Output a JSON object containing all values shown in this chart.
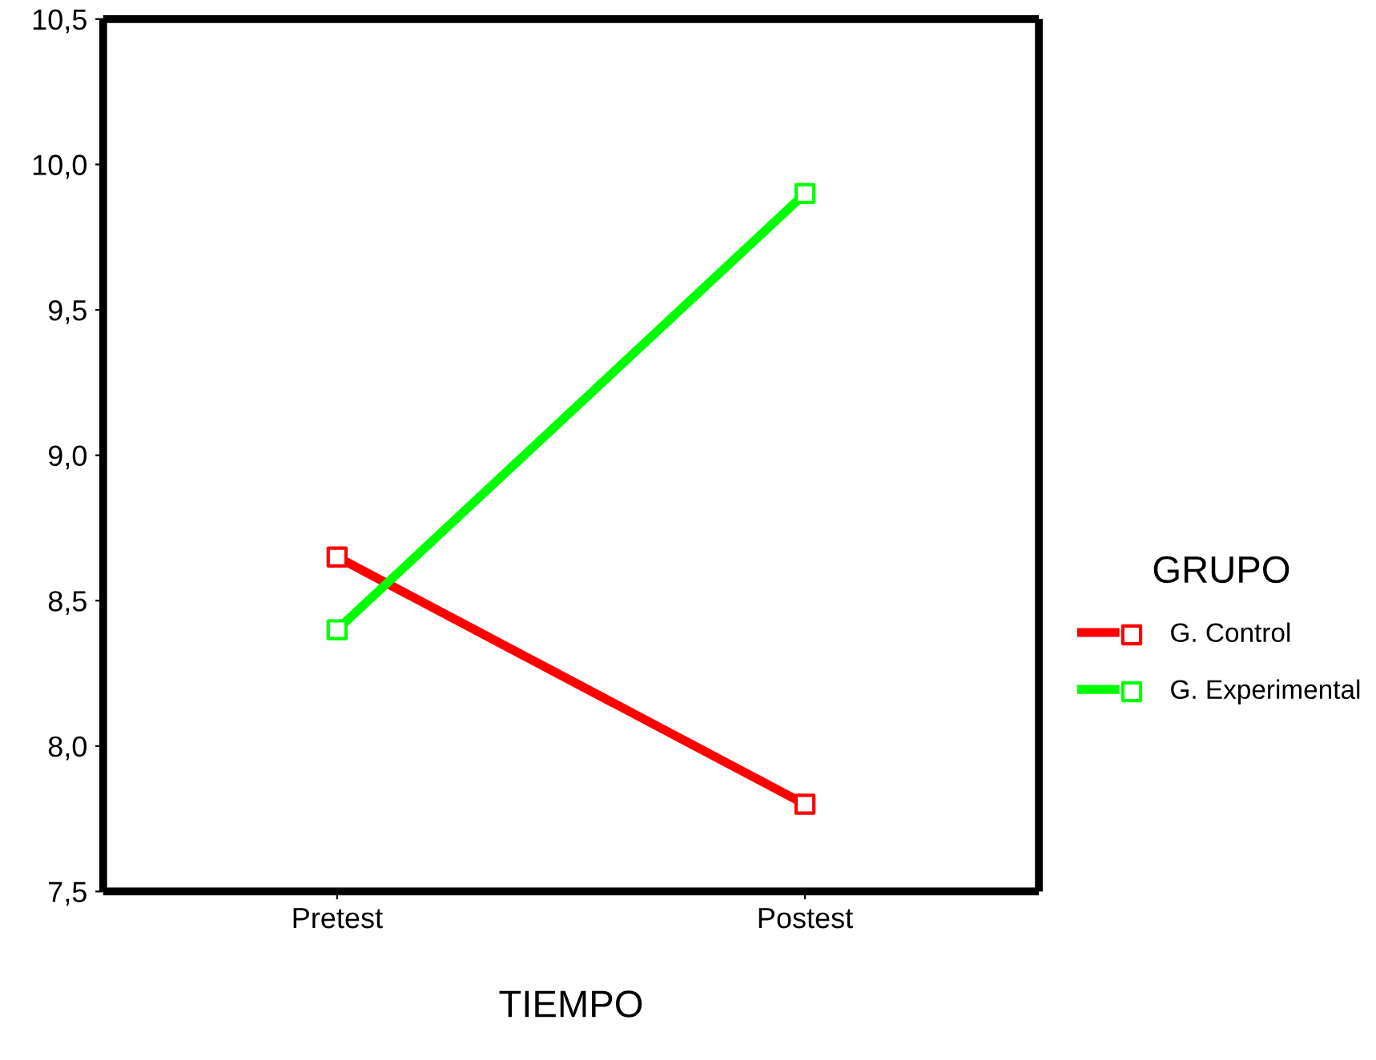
{
  "chart_data": {
    "type": "line",
    "xlabel": "TIEMPO",
    "legend_title": "GRUPO",
    "categories": [
      "Pretest",
      "Postest"
    ],
    "series": [
      {
        "name": "G. Control",
        "color": "#ff0000",
        "values": [
          8.65,
          7.8
        ]
      },
      {
        "name": "G. Experimental",
        "color": "#00ff00",
        "values": [
          8.4,
          9.9
        ]
      }
    ],
    "ylim": [
      7.5,
      10.5
    ],
    "yticks": [
      {
        "value": 7.5,
        "label": "7,5"
      },
      {
        "value": 8.0,
        "label": "8,0"
      },
      {
        "value": 8.5,
        "label": "8,5"
      },
      {
        "value": 9.0,
        "label": "9,0"
      },
      {
        "value": 9.5,
        "label": "9,5"
      },
      {
        "value": 10.0,
        "label": "10,0"
      },
      {
        "value": 10.5,
        "label": "10,5"
      }
    ],
    "marker": "square",
    "line_style": "solid",
    "legend": "right",
    "grid": false
  }
}
